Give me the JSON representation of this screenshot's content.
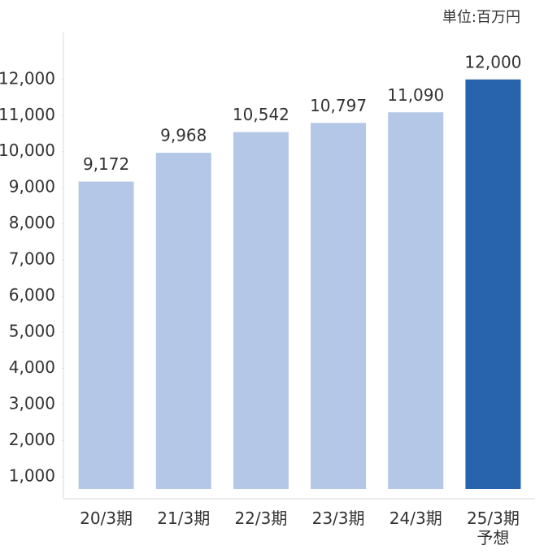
{
  "chart_data": {
    "type": "bar",
    "unit_label": "単位:百万円",
    "categories": [
      "20/3期",
      "21/3期",
      "22/3期",
      "23/3期",
      "24/3期",
      "25/3期\n予想"
    ],
    "values": [
      9172,
      9968,
      10542,
      10797,
      11090,
      12000
    ],
    "value_labels": [
      "9,172",
      "9,968",
      "10,542",
      "10,797",
      "11,090",
      "12,000"
    ],
    "colors": [
      "#b4c7e7",
      "#b4c7e7",
      "#b4c7e7",
      "#b4c7e7",
      "#b4c7e7",
      "#2764ad"
    ],
    "ylim": [
      660,
      13300
    ],
    "yticks": [
      {
        "value": 1000,
        "label": "1,000"
      },
      {
        "value": 2000,
        "label": "2,000"
      },
      {
        "value": 3000,
        "label": "3,000"
      },
      {
        "value": 4000,
        "label": "4,000"
      },
      {
        "value": 5000,
        "label": "5,000"
      },
      {
        "value": 6000,
        "label": "6,000"
      },
      {
        "value": 7000,
        "label": "7,000"
      },
      {
        "value": 8000,
        "label": "8,000"
      },
      {
        "value": 9000,
        "label": "9,000"
      },
      {
        "value": 10000,
        "label": "10,000"
      },
      {
        "value": 11000,
        "label": "11,000"
      },
      {
        "value": 12000,
        "label": "12,000"
      }
    ],
    "grid": false
  }
}
